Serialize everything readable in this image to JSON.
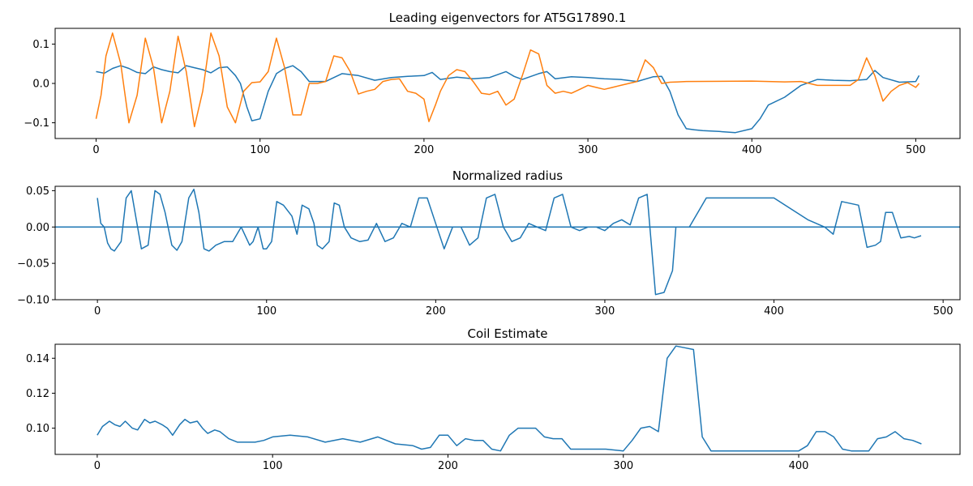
{
  "colors": {
    "blue": "#1f77b4",
    "orange": "#ff7f0e"
  },
  "chart_data": [
    {
      "type": "line",
      "title": "Leading eigenvectors for AT5G17890.1",
      "xlabel": "",
      "ylabel": "",
      "xlim": [
        -25,
        527
      ],
      "ylim": [
        -0.14,
        0.14
      ],
      "xticks": [
        0,
        100,
        200,
        300,
        400,
        500
      ],
      "xtick_labels": [
        "0",
        "100",
        "200",
        "300",
        "400",
        "500"
      ],
      "yticks": [
        -0.1,
        0.0,
        0.1
      ],
      "ytick_labels": [
        "−0.1",
        "0.0",
        "0.1"
      ],
      "series": [
        {
          "color": "#1f77b4",
          "x": [
            0,
            5,
            10,
            15,
            20,
            25,
            30,
            35,
            40,
            45,
            50,
            55,
            60,
            65,
            70,
            75,
            80,
            85,
            88,
            92,
            95,
            100,
            105,
            110,
            115,
            120,
            125,
            130,
            140,
            150,
            160,
            170,
            180,
            190,
            200,
            205,
            210,
            220,
            230,
            240,
            250,
            255,
            260,
            270,
            275,
            280,
            290,
            300,
            310,
            320,
            330,
            340,
            345,
            350,
            355,
            360,
            365,
            370,
            380,
            390,
            400,
            405,
            410,
            420,
            430,
            440,
            450,
            460,
            470,
            475,
            480,
            490,
            500,
            502
          ],
          "y": [
            0.03,
            0.026,
            0.038,
            0.045,
            0.038,
            0.028,
            0.025,
            0.042,
            0.035,
            0.03,
            0.027,
            0.045,
            0.04,
            0.035,
            0.027,
            0.04,
            0.042,
            0.02,
            0.0,
            -0.06,
            -0.095,
            -0.09,
            -0.02,
            0.025,
            0.038,
            0.045,
            0.03,
            0.005,
            0.005,
            0.025,
            0.02,
            0.008,
            0.015,
            0.018,
            0.02,
            0.028,
            0.01,
            0.016,
            0.012,
            0.015,
            0.03,
            0.018,
            0.01,
            0.025,
            0.03,
            0.012,
            0.017,
            0.015,
            0.012,
            0.01,
            0.005,
            0.017,
            0.018,
            -0.02,
            -0.08,
            -0.115,
            -0.118,
            -0.12,
            -0.122,
            -0.125,
            -0.115,
            -0.09,
            -0.055,
            -0.035,
            -0.005,
            0.01,
            0.008,
            0.007,
            0.01,
            0.033,
            0.015,
            0.003,
            0.005,
            0.02
          ]
        },
        {
          "color": "#ff7f0e",
          "x": [
            0,
            3,
            6,
            10,
            15,
            20,
            25,
            30,
            35,
            40,
            45,
            50,
            55,
            60,
            65,
            70,
            75,
            80,
            85,
            90,
            95,
            100,
            105,
            110,
            115,
            120,
            125,
            130,
            135,
            140,
            145,
            150,
            155,
            160,
            165,
            170,
            175,
            180,
            185,
            190,
            195,
            200,
            203,
            207,
            210,
            215,
            220,
            225,
            230,
            235,
            240,
            245,
            250,
            255,
            260,
            265,
            270,
            275,
            280,
            285,
            290,
            295,
            300,
            305,
            310,
            315,
            320,
            325,
            330,
            335,
            340,
            345,
            350,
            355,
            360,
            400,
            420,
            430,
            440,
            450,
            460,
            465,
            470,
            475,
            480,
            485,
            490,
            495,
            500,
            502
          ],
          "y": [
            -0.09,
            -0.03,
            0.07,
            0.128,
            0.05,
            -0.1,
            -0.03,
            0.115,
            0.04,
            -0.1,
            -0.02,
            0.12,
            0.03,
            -0.11,
            -0.02,
            0.128,
            0.07,
            -0.06,
            -0.1,
            -0.02,
            0.002,
            0.004,
            0.03,
            0.115,
            0.04,
            -0.08,
            -0.08,
            0.0,
            0.0,
            0.005,
            0.07,
            0.065,
            0.03,
            -0.027,
            -0.02,
            -0.015,
            0.005,
            0.01,
            0.012,
            -0.02,
            -0.025,
            -0.04,
            -0.097,
            -0.055,
            -0.02,
            0.02,
            0.035,
            0.03,
            0.005,
            -0.025,
            -0.028,
            -0.02,
            -0.055,
            -0.04,
            0.02,
            0.085,
            0.075,
            -0.005,
            -0.025,
            -0.02,
            -0.025,
            -0.015,
            -0.005,
            -0.01,
            -0.015,
            -0.01,
            -0.005,
            0.0,
            0.005,
            0.06,
            0.04,
            0.0,
            0.003,
            0.004,
            0.005,
            0.006,
            0.004,
            0.005,
            -0.005,
            -0.005,
            -0.005,
            0.01,
            0.065,
            0.02,
            -0.045,
            -0.02,
            -0.005,
            0.002,
            -0.01,
            0.0
          ]
        }
      ]
    },
    {
      "type": "line",
      "title": "Normalized radius",
      "xlabel": "",
      "ylabel": "",
      "xlim": [
        -25,
        510
      ],
      "ylim": [
        -0.1,
        0.056
      ],
      "xticks": [
        0,
        100,
        200,
        300,
        400,
        500
      ],
      "xtick_labels": [
        "0",
        "100",
        "200",
        "300",
        "400",
        "500"
      ],
      "yticks": [
        -0.1,
        -0.05,
        0.0,
        0.05
      ],
      "ytick_labels": [
        "−0.10",
        "−0.05",
        "0.00",
        "0.05"
      ],
      "hline": 0.0,
      "series": [
        {
          "color": "#1f77b4",
          "x": [
            0,
            2,
            4,
            6,
            8,
            10,
            14,
            17,
            20,
            23,
            26,
            30,
            34,
            37,
            40,
            44,
            47,
            50,
            54,
            57,
            60,
            63,
            66,
            70,
            75,
            80,
            85,
            90,
            92,
            95,
            98,
            100,
            103,
            106,
            110,
            115,
            118,
            121,
            125,
            128,
            130,
            133,
            137,
            140,
            143,
            146,
            150,
            155,
            160,
            165,
            170,
            175,
            180,
            185,
            190,
            195,
            200,
            205,
            210,
            215,
            220,
            225,
            230,
            235,
            240,
            245,
            250,
            255,
            260,
            265,
            270,
            275,
            280,
            285,
            290,
            295,
            300,
            305,
            310,
            315,
            320,
            325,
            330,
            335,
            340,
            342,
            344,
            347,
            350,
            360,
            400,
            420,
            425,
            430,
            435,
            440,
            450,
            455,
            460,
            463,
            466,
            470,
            475,
            480,
            483,
            487
          ],
          "y": [
            0.04,
            0.005,
            0.0,
            -0.022,
            -0.03,
            -0.033,
            -0.02,
            0.04,
            0.05,
            0.01,
            -0.03,
            -0.025,
            0.05,
            0.045,
            0.02,
            -0.025,
            -0.032,
            -0.02,
            0.04,
            0.052,
            0.02,
            -0.03,
            -0.033,
            -0.025,
            -0.02,
            -0.02,
            0.0,
            -0.025,
            -0.02,
            0.0,
            -0.03,
            -0.03,
            -0.02,
            0.035,
            0.03,
            0.015,
            -0.01,
            0.03,
            0.025,
            0.005,
            -0.025,
            -0.03,
            -0.02,
            0.033,
            0.03,
            0.0,
            -0.015,
            -0.02,
            -0.018,
            0.005,
            -0.02,
            -0.015,
            0.005,
            0.0,
            0.04,
            0.04,
            0.005,
            -0.03,
            0.0,
            0.0,
            -0.025,
            -0.015,
            0.04,
            0.045,
            0.0,
            -0.02,
            -0.015,
            0.005,
            0.0,
            -0.005,
            0.04,
            0.045,
            0.0,
            -0.005,
            0.0,
            0.0,
            -0.005,
            0.005,
            0.01,
            0.003,
            0.04,
            0.045,
            -0.093,
            -0.09,
            -0.06,
            0.0,
            0.0,
            0.0,
            0.0,
            0.04,
            0.04,
            0.01,
            0.005,
            0.0,
            -0.01,
            0.035,
            0.03,
            -0.028,
            -0.025,
            -0.02,
            0.02,
            0.02,
            -0.015,
            -0.013,
            -0.015,
            -0.012
          ]
        }
      ]
    },
    {
      "type": "line",
      "title": "Coil Estimate",
      "xlabel": "",
      "ylabel": "",
      "xlim": [
        -24,
        492
      ],
      "ylim": [
        0.085,
        0.148
      ],
      "xticks": [
        0,
        100,
        200,
        300,
        400
      ],
      "xtick_labels": [
        "0",
        "100",
        "200",
        "300",
        "400"
      ],
      "yticks": [
        0.1,
        0.12,
        0.14
      ],
      "ytick_labels": [
        "0.10",
        "0.12",
        "0.14"
      ],
      "series": [
        {
          "color": "#1f77b4",
          "x": [
            0,
            3,
            7,
            10,
            13,
            16,
            20,
            23,
            27,
            30,
            33,
            37,
            40,
            43,
            47,
            50,
            53,
            57,
            60,
            63,
            67,
            70,
            75,
            80,
            90,
            95,
            100,
            110,
            120,
            130,
            140,
            150,
            160,
            170,
            180,
            185,
            190,
            195,
            200,
            205,
            210,
            215,
            220,
            225,
            230,
            235,
            240,
            245,
            250,
            255,
            260,
            265,
            270,
            280,
            290,
            300,
            305,
            310,
            315,
            320,
            325,
            330,
            335,
            340,
            345,
            350,
            360,
            390,
            400,
            405,
            410,
            415,
            420,
            425,
            430,
            440,
            445,
            450,
            455,
            460,
            465,
            470
          ],
          "y": [
            0.096,
            0.101,
            0.104,
            0.102,
            0.101,
            0.104,
            0.1,
            0.099,
            0.105,
            0.103,
            0.104,
            0.102,
            0.1,
            0.096,
            0.102,
            0.105,
            0.103,
            0.104,
            0.1,
            0.097,
            0.099,
            0.098,
            0.094,
            0.092,
            0.092,
            0.093,
            0.095,
            0.096,
            0.095,
            0.092,
            0.094,
            0.092,
            0.095,
            0.091,
            0.09,
            0.088,
            0.089,
            0.096,
            0.096,
            0.09,
            0.094,
            0.093,
            0.093,
            0.088,
            0.087,
            0.096,
            0.1,
            0.1,
            0.1,
            0.095,
            0.094,
            0.094,
            0.088,
            0.088,
            0.088,
            0.087,
            0.093,
            0.1,
            0.101,
            0.098,
            0.14,
            0.147,
            0.146,
            0.145,
            0.095,
            0.087,
            0.087,
            0.087,
            0.087,
            0.09,
            0.098,
            0.098,
            0.095,
            0.088,
            0.087,
            0.087,
            0.094,
            0.095,
            0.098,
            0.094,
            0.093,
            0.091
          ]
        }
      ]
    }
  ]
}
